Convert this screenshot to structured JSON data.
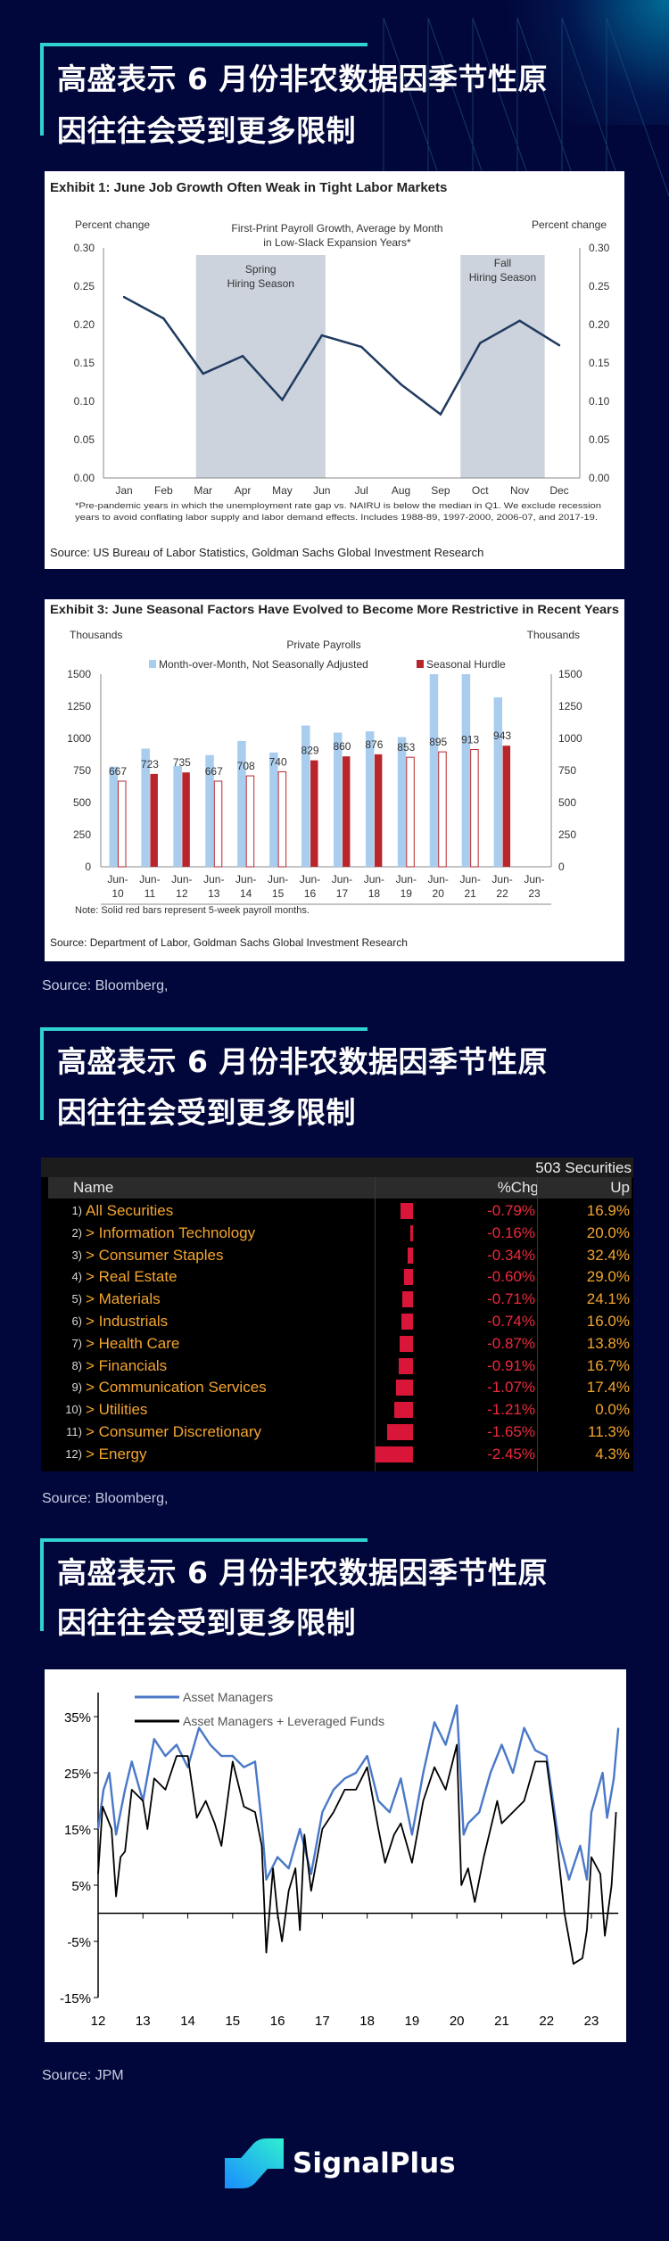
{
  "sections": [
    {
      "title_line1": "高盛表示 6 月份非农数据因季节性原",
      "title_line2": "因往往会受到更多限制"
    },
    {
      "title_line1": "高盛表示 6 月份非农数据因季节性原",
      "title_line2": "因往往会受到更多限制"
    },
    {
      "title_line1": "高盛表示 6 月份非农数据因季节性原",
      "title_line2": "因往往会受到更多限制"
    }
  ],
  "sources": [
    "Source: Bloomberg,",
    "Source: Bloomberg,",
    "Source: JPM"
  ],
  "brand": {
    "name": "SignalPlus",
    "accent": "#2fd1d1",
    "background": "#02073b"
  },
  "chart_data": [
    {
      "type": "line",
      "title": "Exhibit 1: June Job Growth Often Weak in Tight Labor Markets",
      "subtitle_line1": "First-Print Payroll Growth, Average  by Month",
      "subtitle_line2": "in Low-Slack Expansion Years*",
      "ylabel_left": "Percent change",
      "ylabel_right": "Percent change",
      "ylim": [
        0,
        0.3
      ],
      "yticks": [
        "0.00",
        "0.05",
        "0.10",
        "0.15",
        "0.20",
        "0.25",
        "0.30"
      ],
      "categories": [
        "Jan",
        "Feb",
        "Mar",
        "Apr",
        "May",
        "Jun",
        "Jul",
        "Aug",
        "Sep",
        "Oct",
        "Nov",
        "Dec"
      ],
      "values": [
        0.236,
        0.208,
        0.136,
        0.159,
        0.102,
        0.186,
        0.171,
        0.122,
        0.083,
        0.176,
        0.205,
        0.173
      ],
      "shaded_regions": [
        {
          "label_line1": "Spring",
          "label_line2": "Hiring Season",
          "from": "Mar",
          "to": "Jun"
        },
        {
          "label_line1": "Fall",
          "label_line2": "Hiring Season",
          "from": "Oct",
          "to": "Nov"
        }
      ],
      "line_color": "#1f3a5f",
      "shade_color": "#ccd3dc",
      "footnote_line1": "*Pre-pandemic years in which the unemployment rate gap vs. NAIRU is below the median in Q1. We exclude recession",
      "footnote_line2": "years to avoid conflating labor supply and labor demand effects. Includes 1988-89, 1997-2000, 2006-07, and 2017-19.",
      "source": "Source: US Bureau of Labor Statistics, Goldman Sachs Global Investment Research"
    },
    {
      "type": "bar",
      "title": "Exhibit 3: June Seasonal Factors Have Evolved to Become More Restrictive in Recent Years",
      "subtitle": "Private Payrolls",
      "ylabel_left": "Thousands",
      "ylabel_right": "Thousands",
      "ylim": [
        0,
        1500
      ],
      "yticks": [
        "0",
        "250",
        "500",
        "750",
        "1000",
        "1250",
        "1500"
      ],
      "categories": [
        [
          "Jun-",
          "10"
        ],
        [
          "Jun-",
          "11"
        ],
        [
          "Jun-",
          "12"
        ],
        [
          "Jun-",
          "13"
        ],
        [
          "Jun-",
          "14"
        ],
        [
          "Jun-",
          "15"
        ],
        [
          "Jun-",
          "16"
        ],
        [
          "Jun-",
          "17"
        ],
        [
          "Jun-",
          "18"
        ],
        [
          "Jun-",
          "19"
        ],
        [
          "Jun-",
          "20"
        ],
        [
          "Jun-",
          "21"
        ],
        [
          "Jun-",
          "22"
        ],
        [
          "Jun-",
          "23"
        ]
      ],
      "series": [
        {
          "name": "Month-over-Month, Not Seasonally Adjusted",
          "color": "#a9cdee",
          "values": [
            780,
            920,
            785,
            870,
            980,
            890,
            1100,
            1045,
            1055,
            1010,
            1500,
            1500,
            1320,
            null
          ]
        },
        {
          "name": "Seasonal Hurdle",
          "color": "#b8262c",
          "values": [
            667,
            723,
            735,
            667,
            708,
            740,
            829,
            860,
            876,
            853,
            895,
            913,
            943,
            null
          ],
          "solid": [
            false,
            true,
            true,
            false,
            false,
            false,
            true,
            true,
            true,
            false,
            false,
            false,
            true,
            false
          ]
        }
      ],
      "data_labels": [
        "667",
        "723",
        "735",
        "667",
        "708",
        "740",
        "829",
        "860",
        "876",
        "853",
        "895",
        "913",
        "943"
      ],
      "note": "Note:  Solid red bars represent  5-week payroll months.",
      "source": "Source: Department of Labor, Goldman Sachs Global Investment Research"
    },
    {
      "type": "table",
      "header_right": "503 Securities",
      "columns": [
        "Name",
        "%Chg",
        "Up"
      ],
      "rows": [
        {
          "num": "1)",
          "name": "All Securities",
          "chg": "-0.79%",
          "chg_value": -0.79,
          "up": "16.9%"
        },
        {
          "num": "2)",
          "name": "> Information Technology",
          "chg": "-0.16%",
          "chg_value": -0.16,
          "up": "20.0%"
        },
        {
          "num": "3)",
          "name": "> Consumer Staples",
          "chg": "-0.34%",
          "chg_value": -0.34,
          "up": "32.4%"
        },
        {
          "num": "4)",
          "name": "> Real Estate",
          "chg": "-0.60%",
          "chg_value": -0.6,
          "up": "29.0%"
        },
        {
          "num": "5)",
          "name": "> Materials",
          "chg": "-0.71%",
          "chg_value": -0.71,
          "up": "24.1%"
        },
        {
          "num": "6)",
          "name": "> Industrials",
          "chg": "-0.74%",
          "chg_value": -0.74,
          "up": "16.0%"
        },
        {
          "num": "7)",
          "name": "> Health Care",
          "chg": "-0.87%",
          "chg_value": -0.87,
          "up": "13.8%"
        },
        {
          "num": "8)",
          "name": "> Financials",
          "chg": "-0.91%",
          "chg_value": -0.91,
          "up": "16.7%"
        },
        {
          "num": "9)",
          "name": "> Communication Services",
          "chg": "-1.07%",
          "chg_value": -1.07,
          "up": "17.4%"
        },
        {
          "num": "10)",
          "name": "> Utilities",
          "chg": "-1.21%",
          "chg_value": -1.21,
          "up": "0.0%"
        },
        {
          "num": "11)",
          "name": "> Consumer Discretionary",
          "chg": "-1.65%",
          "chg_value": -1.65,
          "up": "11.3%"
        },
        {
          "num": "12)",
          "name": "> Energy",
          "chg": "-2.45%",
          "chg_value": -2.45,
          "up": "4.3%"
        }
      ],
      "colors": {
        "text": "#f4a530",
        "negative": "#ee2a3c",
        "bar": "#d9163a"
      }
    },
    {
      "type": "line",
      "ylim": [
        -15,
        40
      ],
      "yticks": [
        "-15%",
        "-5%",
        "5%",
        "15%",
        "25%",
        "35%"
      ],
      "xticks": [
        "12",
        "13",
        "14",
        "15",
        "16",
        "17",
        "18",
        "19",
        "20",
        "21",
        "22",
        "23"
      ],
      "xlim": [
        2012,
        2023.6
      ],
      "series": [
        {
          "name": "Asset Managers",
          "color": "#4a78c8",
          "x": [
            2012.0,
            2012.12,
            2012.25,
            2012.4,
            2012.6,
            2012.75,
            2013.0,
            2013.25,
            2013.5,
            2013.75,
            2014.0,
            2014.25,
            2014.5,
            2014.75,
            2015.0,
            2015.25,
            2015.5,
            2015.65,
            2015.75,
            2016.0,
            2016.25,
            2016.5,
            2016.75,
            2017.0,
            2017.25,
            2017.5,
            2017.75,
            2018.0,
            2018.25,
            2018.5,
            2018.75,
            2019.0,
            2019.25,
            2019.5,
            2019.75,
            2020.0,
            2020.15,
            2020.25,
            2020.5,
            2020.75,
            2021.0,
            2021.25,
            2021.5,
            2021.75,
            2022.0,
            2022.25,
            2022.5,
            2022.75,
            2022.9,
            2023.0,
            2023.25,
            2023.35,
            2023.5,
            2023.6
          ],
          "y": [
            15,
            22,
            25,
            14,
            22,
            27,
            20,
            31,
            28,
            30,
            26,
            33,
            30,
            28,
            28,
            26,
            27,
            16,
            6,
            10,
            8,
            15,
            7,
            18,
            22,
            24,
            25,
            28,
            20,
            18,
            24,
            14,
            25,
            34,
            30,
            37,
            14,
            16,
            18,
            25,
            30,
            25,
            33,
            29,
            28,
            14,
            6,
            12,
            6,
            18,
            25,
            17,
            24,
            33
          ]
        },
        {
          "name": "Asset Managers + Leveraged Funds",
          "color": "#000000",
          "x": [
            2012.0,
            2012.1,
            2012.3,
            2012.4,
            2012.5,
            2012.6,
            2012.75,
            2013.0,
            2013.1,
            2013.25,
            2013.5,
            2013.75,
            2014.0,
            2014.2,
            2014.4,
            2014.6,
            2014.75,
            2015.0,
            2015.25,
            2015.5,
            2015.65,
            2015.75,
            2015.9,
            2016.0,
            2016.1,
            2016.25,
            2016.4,
            2016.5,
            2016.6,
            2016.75,
            2017.0,
            2017.25,
            2017.5,
            2017.75,
            2018.0,
            2018.25,
            2018.4,
            2018.6,
            2018.75,
            2019.0,
            2019.25,
            2019.5,
            2019.75,
            2020.0,
            2020.1,
            2020.25,
            2020.4,
            2020.6,
            2020.9,
            2021.0,
            2021.25,
            2021.5,
            2021.75,
            2022.0,
            2022.2,
            2022.4,
            2022.6,
            2022.8,
            2022.9,
            2023.0,
            2023.2,
            2023.3,
            2023.45,
            2023.55
          ],
          "y": [
            7,
            19,
            15,
            3,
            10,
            11,
            22,
            20,
            15,
            24,
            22,
            28,
            28,
            17,
            20,
            16,
            12,
            27,
            19,
            18,
            12,
            -7,
            8,
            0,
            -5,
            4,
            8,
            -3,
            14,
            4,
            15,
            18,
            22,
            22,
            26,
            15,
            9,
            14,
            16,
            9,
            20,
            26,
            22,
            30,
            5,
            8,
            2,
            10,
            20,
            16,
            18,
            20,
            27,
            27,
            15,
            0,
            -9,
            -8,
            -3,
            10,
            7,
            -4,
            5,
            18
          ]
        }
      ]
    }
  ]
}
